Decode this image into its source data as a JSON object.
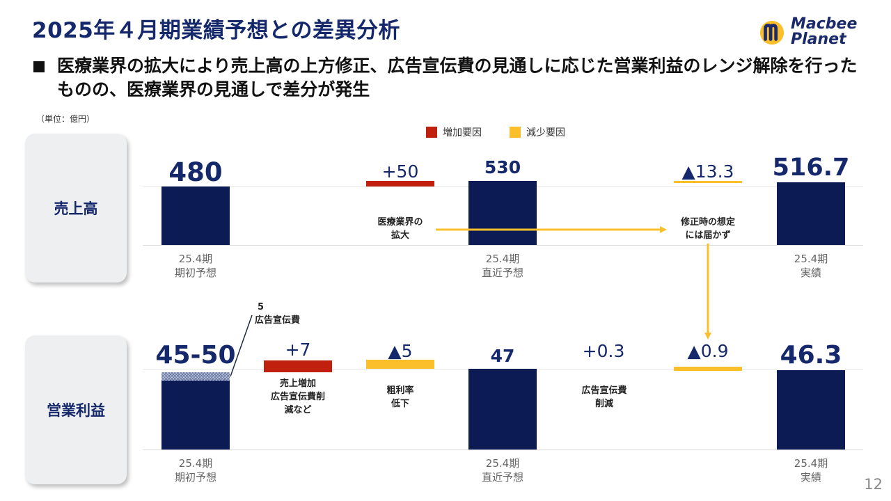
{
  "header": {
    "title": "2025年４月期業績予想との差異分析",
    "subtitle": "医療業界の拡大により売上高の上方修正、広告宣伝費の見通しに応じた営業利益のレンジ解除を行ったものの、医療業界の見通しで差分が発生",
    "logo_line1": "Macbee",
    "logo_line2": "Planet"
  },
  "unit_label": "（単位：億円）",
  "legend": {
    "increase": "増加要因",
    "decrease": "減少要因",
    "increase_color": "#c0200d",
    "decrease_color": "#fbbf2c",
    "total_color": "#0d1b55"
  },
  "page_number": "12",
  "chart_data": [
    {
      "type": "bar",
      "title": "売上高",
      "categories": [
        "25.4期\n期初予想",
        "",
        "25.4期\n直近予想",
        "",
        "25.4期\n実績"
      ],
      "values": [
        480,
        50,
        530,
        -13.3,
        516.7
      ],
      "value_labels": [
        "480",
        "+50",
        "530",
        "▲13.3",
        "516.7"
      ],
      "notes": [
        "医療業界の\n拡大",
        "修正時の想定\nには届かず"
      ]
    },
    {
      "type": "bar",
      "title": "営業利益",
      "categories": [
        "25.4期\n期初予想",
        "",
        "",
        "25.4期\n直近予想",
        "",
        "",
        "25.4期\n実績"
      ],
      "values": [
        50,
        7,
        -5,
        47,
        0.3,
        -0.9,
        46.3
      ],
      "range_low": 45,
      "value_labels": [
        "45-50",
        "+7",
        "▲5",
        "47",
        "+0.3",
        "▲0.9",
        "46.3"
      ],
      "notes": [
        "売上増加\n広告宣伝費削\n減など",
        "粗利率\n低下",
        "広告宣伝費\n削減"
      ],
      "callout_value": "5",
      "callout_text": "広告宣伝費"
    }
  ]
}
